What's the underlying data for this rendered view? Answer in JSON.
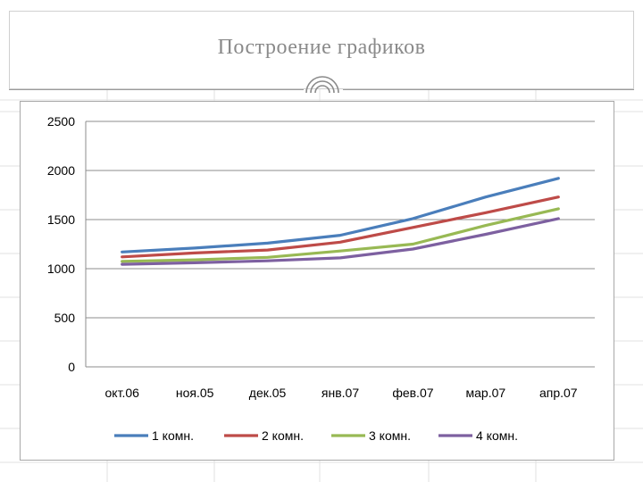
{
  "slide": {
    "title": "Построение графиков"
  },
  "chart_data": {
    "type": "line",
    "categories": [
      "окт.06",
      "ноя.05",
      "дек.05",
      "янв.07",
      "фев.07",
      "мар.07",
      "апр.07"
    ],
    "series": [
      {
        "name": "1 комн.",
        "color": "#4a7ebb",
        "values": [
          1170,
          1210,
          1260,
          1340,
          1510,
          1730,
          1920
        ]
      },
      {
        "name": "2 комн.",
        "color": "#be4b48",
        "values": [
          1120,
          1160,
          1190,
          1270,
          1420,
          1570,
          1730
        ]
      },
      {
        "name": "3 комн.",
        "color": "#98b954",
        "values": [
          1075,
          1090,
          1115,
          1180,
          1250,
          1440,
          1610
        ]
      },
      {
        "name": "4 комн.",
        "color": "#7d60a0",
        "values": [
          1045,
          1060,
          1080,
          1110,
          1200,
          1350,
          1510
        ]
      }
    ],
    "y_ticks": [
      "0",
      "500",
      "1000",
      "1500",
      "2000",
      "2500"
    ],
    "ylim": [
      0,
      2500
    ],
    "grid": true,
    "legend": "bottom"
  }
}
